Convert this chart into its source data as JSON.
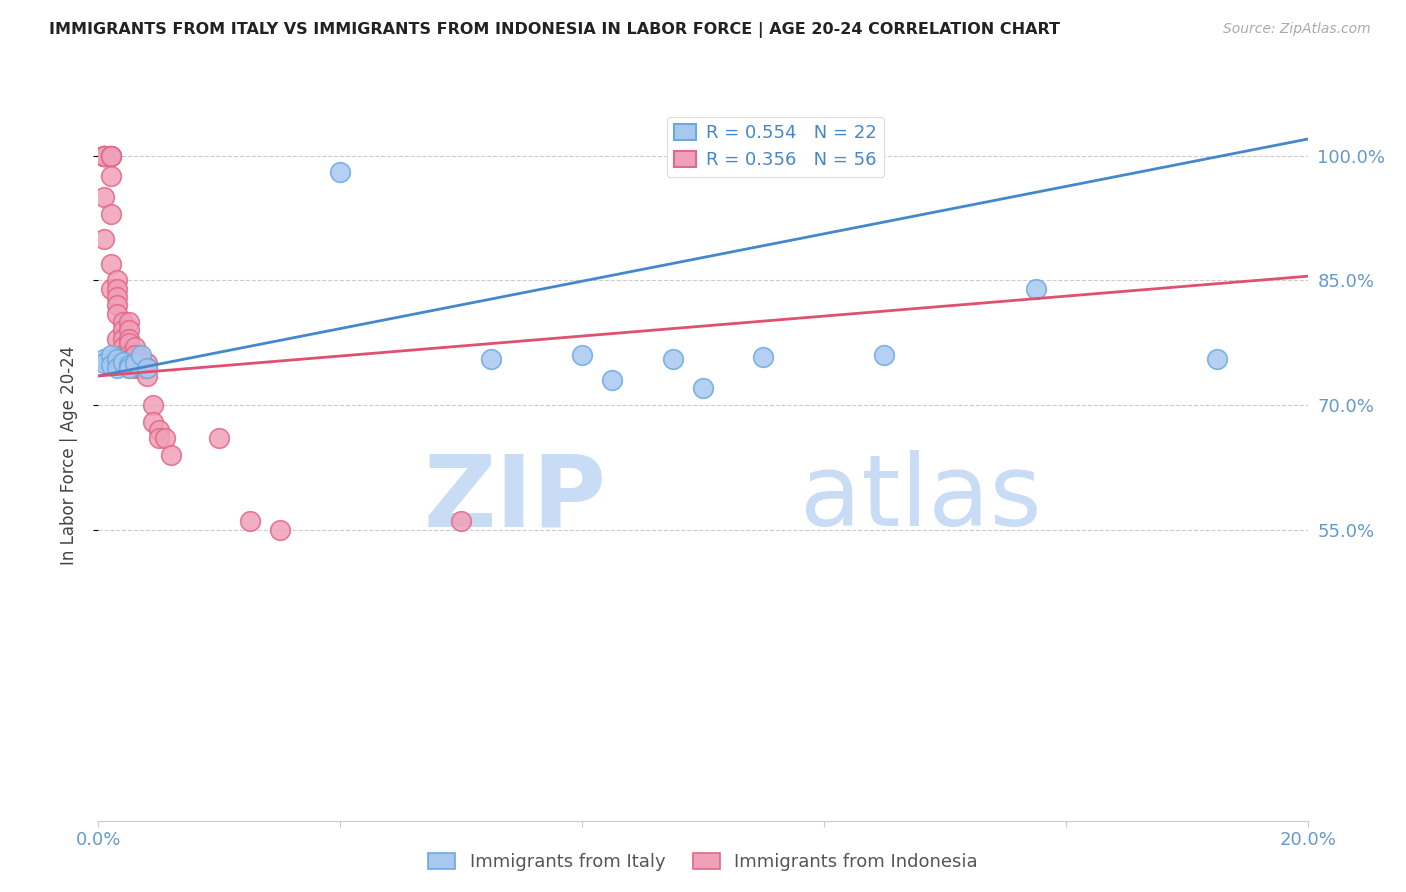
{
  "title": "IMMIGRANTS FROM ITALY VS IMMIGRANTS FROM INDONESIA IN LABOR FORCE | AGE 20-24 CORRELATION CHART",
  "source": "Source: ZipAtlas.com",
  "ylabel": "In Labor Force | Age 20-24",
  "xlim": [
    0.0,
    0.2
  ],
  "ylim": [
    0.2,
    1.08
  ],
  "yticks": [
    0.55,
    0.7,
    0.85,
    1.0
  ],
  "ytick_labels": [
    "55.0%",
    "70.0%",
    "85.0%",
    "100.0%"
  ],
  "xticks": [
    0.0,
    0.04,
    0.08,
    0.12,
    0.16,
    0.2
  ],
  "xtick_labels": [
    "0.0%",
    "",
    "",
    "",
    "",
    "20.0%"
  ],
  "italy_color": "#a8c8f0",
  "indonesia_color": "#f0a0b8",
  "italy_edge_color": "#6aaae0",
  "indonesia_edge_color": "#e06888",
  "trend_italy_color": "#4488cc",
  "trend_indonesia_color": "#e05070",
  "R_italy": 0.554,
  "N_italy": 22,
  "R_indonesia": 0.356,
  "N_indonesia": 56,
  "legend_italy": "Immigrants from Italy",
  "legend_indonesia": "Immigrants from Indonesia",
  "background_color": "#ffffff",
  "watermark_zip": "ZIP",
  "watermark_atlas": "atlas",
  "watermark_color": "#c8ddf5",
  "italy_x": [
    0.001,
    0.001,
    0.002,
    0.002,
    0.003,
    0.003,
    0.004,
    0.005,
    0.005,
    0.006,
    0.007,
    0.008,
    0.04,
    0.065,
    0.08,
    0.085,
    0.095,
    0.1,
    0.11,
    0.13,
    0.155,
    0.185
  ],
  "italy_y": [
    0.755,
    0.75,
    0.76,
    0.748,
    0.755,
    0.745,
    0.752,
    0.748,
    0.745,
    0.75,
    0.76,
    0.745,
    0.98,
    0.755,
    0.76,
    0.73,
    0.755,
    0.72,
    0.758,
    0.76,
    0.84,
    0.755
  ],
  "indonesia_x": [
    0.001,
    0.001,
    0.001,
    0.001,
    0.001,
    0.001,
    0.001,
    0.001,
    0.002,
    0.002,
    0.002,
    0.002,
    0.002,
    0.002,
    0.002,
    0.003,
    0.003,
    0.003,
    0.003,
    0.003,
    0.003,
    0.003,
    0.004,
    0.004,
    0.004,
    0.004,
    0.004,
    0.004,
    0.005,
    0.005,
    0.005,
    0.005,
    0.005,
    0.005,
    0.005,
    0.006,
    0.006,
    0.006,
    0.006,
    0.006,
    0.007,
    0.007,
    0.007,
    0.008,
    0.008,
    0.008,
    0.009,
    0.009,
    0.01,
    0.01,
    0.011,
    0.012,
    0.02,
    0.025,
    0.03,
    0.06
  ],
  "indonesia_y": [
    1.0,
    1.0,
    1.0,
    1.0,
    1.0,
    1.0,
    0.95,
    0.9,
    1.0,
    1.0,
    1.0,
    0.975,
    0.93,
    0.87,
    0.84,
    0.85,
    0.84,
    0.83,
    0.82,
    0.81,
    0.78,
    0.76,
    0.8,
    0.79,
    0.78,
    0.77,
    0.76,
    0.75,
    0.8,
    0.79,
    0.78,
    0.775,
    0.76,
    0.755,
    0.745,
    0.77,
    0.76,
    0.75,
    0.75,
    0.745,
    0.755,
    0.75,
    0.745,
    0.75,
    0.745,
    0.735,
    0.7,
    0.68,
    0.67,
    0.66,
    0.66,
    0.64,
    0.66,
    0.56,
    0.55,
    0.56
  ]
}
